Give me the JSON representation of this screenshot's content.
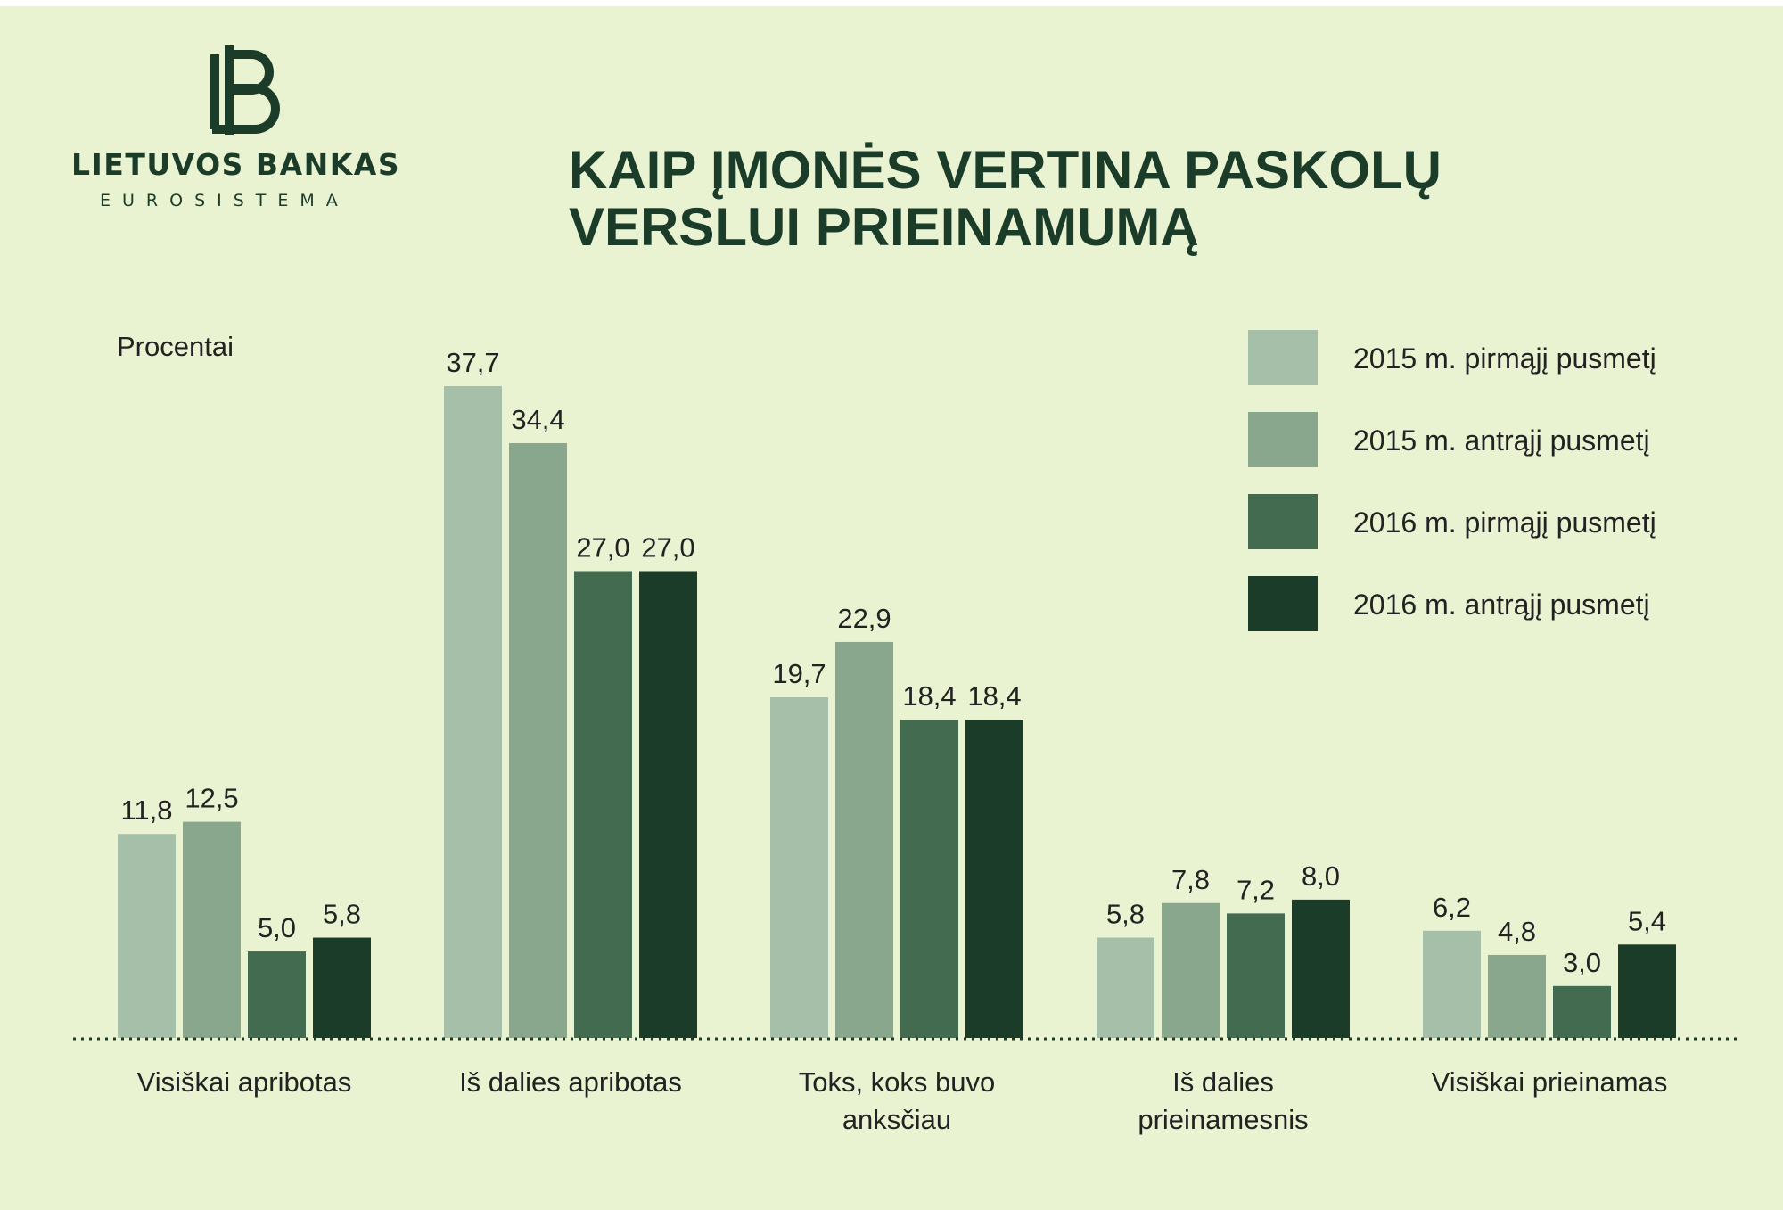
{
  "logo": {
    "name": "LIETUVOS BANKAS",
    "subtitle": "EUROSISTEMA"
  },
  "title": {
    "line1": "KAIP ĮMONĖS VERTINA PASKOLŲ",
    "line2": "VERSLUI PRIEINAMUMĄ"
  },
  "colors": {
    "background": "#e9f3d2",
    "text_dark": "#1c3c2a",
    "series": [
      "#a6bfa8",
      "#89a78d",
      "#436b50",
      "#1c3c2a"
    ]
  },
  "chart_data": {
    "type": "bar",
    "ylabel": "Procentai",
    "ylim": [
      0,
      37.7
    ],
    "grid": false,
    "baseline": "dotted",
    "legend_position": "top-right",
    "categories": [
      [
        "Visiškai apribotas"
      ],
      [
        "Iš dalies apribotas"
      ],
      [
        "Toks, koks buvo",
        "anksčiau"
      ],
      [
        "Iš dalies",
        "prieinamesnis"
      ],
      [
        "Visiškai prieinamas"
      ]
    ],
    "series": [
      {
        "name": "2015 m. pirmąjį pusmetį",
        "values": [
          11.8,
          37.7,
          19.7,
          5.8,
          6.2
        ],
        "labels": [
          "11,8",
          "37,7",
          "19,7",
          "5,8",
          "6,2"
        ]
      },
      {
        "name": "2015 m. antrąjį pusmetį",
        "values": [
          12.5,
          34.4,
          22.9,
          7.8,
          4.8
        ],
        "labels": [
          "12,5",
          "34,4",
          "22,9",
          "7,8",
          "4,8"
        ]
      },
      {
        "name": "2016 m. pirmąjį pusmetį",
        "values": [
          5.0,
          27.0,
          18.4,
          7.2,
          3.0
        ],
        "labels": [
          "5,0",
          "27,0",
          "18,4",
          "7,2",
          "3,0"
        ]
      },
      {
        "name": "2016 m. antrąjį pusmetį",
        "values": [
          5.8,
          27.0,
          18.4,
          8.0,
          5.4
        ],
        "labels": [
          "5,8",
          "27,0",
          "18,4",
          "8,0",
          "5,4"
        ]
      }
    ]
  }
}
